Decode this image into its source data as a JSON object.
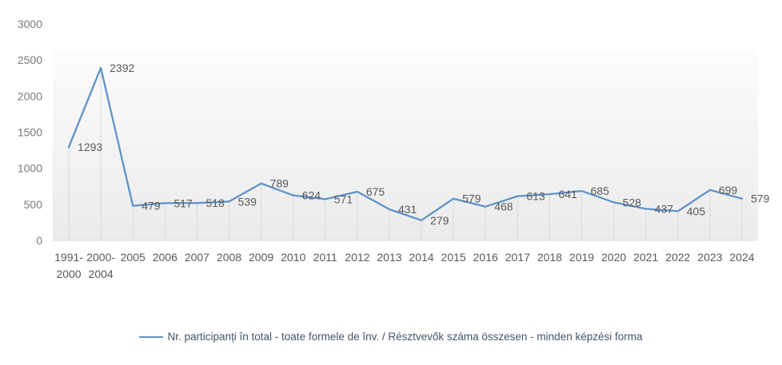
{
  "chart_data": {
    "type": "line",
    "title": "",
    "categories": [
      "1991-\n2000",
      "2000-\n2004",
      "2005",
      "2006",
      "2007",
      "2008",
      "2009",
      "2010",
      "2011",
      "2012",
      "2013",
      "2014",
      "2015",
      "2016",
      "2017",
      "2018",
      "2019",
      "2020",
      "2021",
      "2022",
      "2023",
      "2024"
    ],
    "values": [
      1293,
      2392,
      479,
      517,
      518,
      539,
      789,
      624,
      571,
      675,
      431,
      279,
      579,
      468,
      613,
      641,
      685,
      528,
      437,
      405,
      699,
      579
    ],
    "series_name": "Nr. participanți în total - toate formele de înv. / Résztvevők száma összesen - minden képzési forma",
    "xlabel": "",
    "ylabel": "",
    "ylim": [
      0,
      3000
    ],
    "yticks": [
      0,
      500,
      1000,
      1500,
      2000,
      2500,
      3000
    ],
    "grid": "drop-lines-per-point",
    "legend_position": "bottom",
    "data_labels_visible": true,
    "colors": {
      "line": "#5e93c9",
      "data_label": "#595959",
      "y_axis_label": "#7a7a7a",
      "x_axis_label": "#595959",
      "legend_text": "#44546a",
      "drop_line": "#d9d9d9",
      "plot_bg_top": "#fcfcfc",
      "plot_bg_bottom": "#ebebeb",
      "axis_line": "#dcdcdc"
    }
  }
}
